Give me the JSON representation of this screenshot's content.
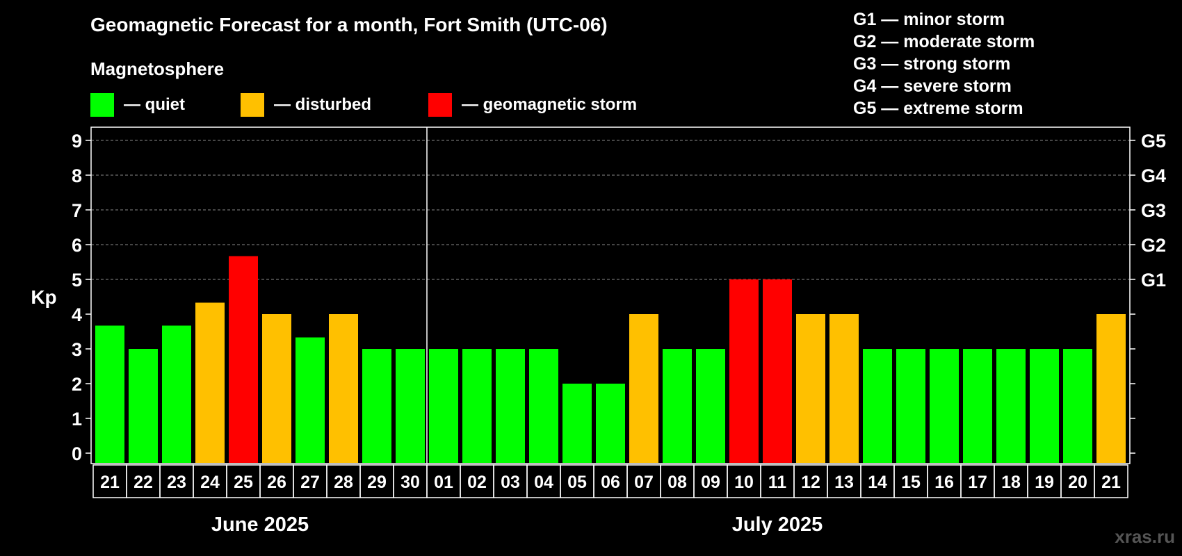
{
  "title": "Geomagnetic Forecast for a month, Fort Smith (UTC-06)",
  "subtitle": "Magnetosphere",
  "legend": [
    {
      "label": "— quiet",
      "color": "#00ff00"
    },
    {
      "label": "— disturbed",
      "color": "#ffc000"
    },
    {
      "label": "— geomagnetic storm",
      "color": "#ff0000"
    }
  ],
  "g_scale": [
    "G1 — minor storm",
    "G2 — moderate storm",
    "G3 — strong storm",
    "G4 — severe storm",
    "G5 — extreme storm"
  ],
  "watermark": "xras.ru",
  "chart_data": {
    "type": "bar",
    "ylabel": "Kp",
    "ylim": [
      0,
      9
    ],
    "yticks": [
      "0",
      "1",
      "2",
      "3",
      "4",
      "5",
      "6",
      "7",
      "8",
      "9"
    ],
    "right_ticks": [
      {
        "value": 5,
        "label": "G1"
      },
      {
        "value": 6,
        "label": "G2"
      },
      {
        "value": 7,
        "label": "G3"
      },
      {
        "value": 8,
        "label": "G4"
      },
      {
        "value": 9,
        "label": "G5"
      }
    ],
    "grid": "dashed horizontal",
    "categories": [
      "21",
      "22",
      "23",
      "24",
      "25",
      "26",
      "27",
      "28",
      "29",
      "30",
      "01",
      "02",
      "03",
      "04",
      "05",
      "06",
      "07",
      "08",
      "09",
      "10",
      "11",
      "12",
      "13",
      "14",
      "15",
      "16",
      "17",
      "18",
      "19",
      "20",
      "21"
    ],
    "values": [
      3.67,
      3,
      3.67,
      4.33,
      5.67,
      4,
      3.33,
      4,
      3,
      3,
      3,
      3,
      3,
      3,
      2,
      2,
      4,
      3,
      3,
      5,
      5,
      4,
      4,
      3,
      3,
      3,
      3,
      3,
      3,
      3,
      4
    ],
    "colors": [
      "#00ff00",
      "#00ff00",
      "#00ff00",
      "#ffc000",
      "#ff0000",
      "#ffc000",
      "#00ff00",
      "#ffc000",
      "#00ff00",
      "#00ff00",
      "#00ff00",
      "#00ff00",
      "#00ff00",
      "#00ff00",
      "#00ff00",
      "#00ff00",
      "#ffc000",
      "#00ff00",
      "#00ff00",
      "#ff0000",
      "#ff0000",
      "#ffc000",
      "#ffc000",
      "#00ff00",
      "#00ff00",
      "#00ff00",
      "#00ff00",
      "#00ff00",
      "#00ff00",
      "#00ff00",
      "#ffc000"
    ],
    "months": [
      {
        "label": "June 2025",
        "start": 0,
        "end": 9
      },
      {
        "label": "July 2025",
        "start": 10,
        "end": 30
      }
    ]
  }
}
